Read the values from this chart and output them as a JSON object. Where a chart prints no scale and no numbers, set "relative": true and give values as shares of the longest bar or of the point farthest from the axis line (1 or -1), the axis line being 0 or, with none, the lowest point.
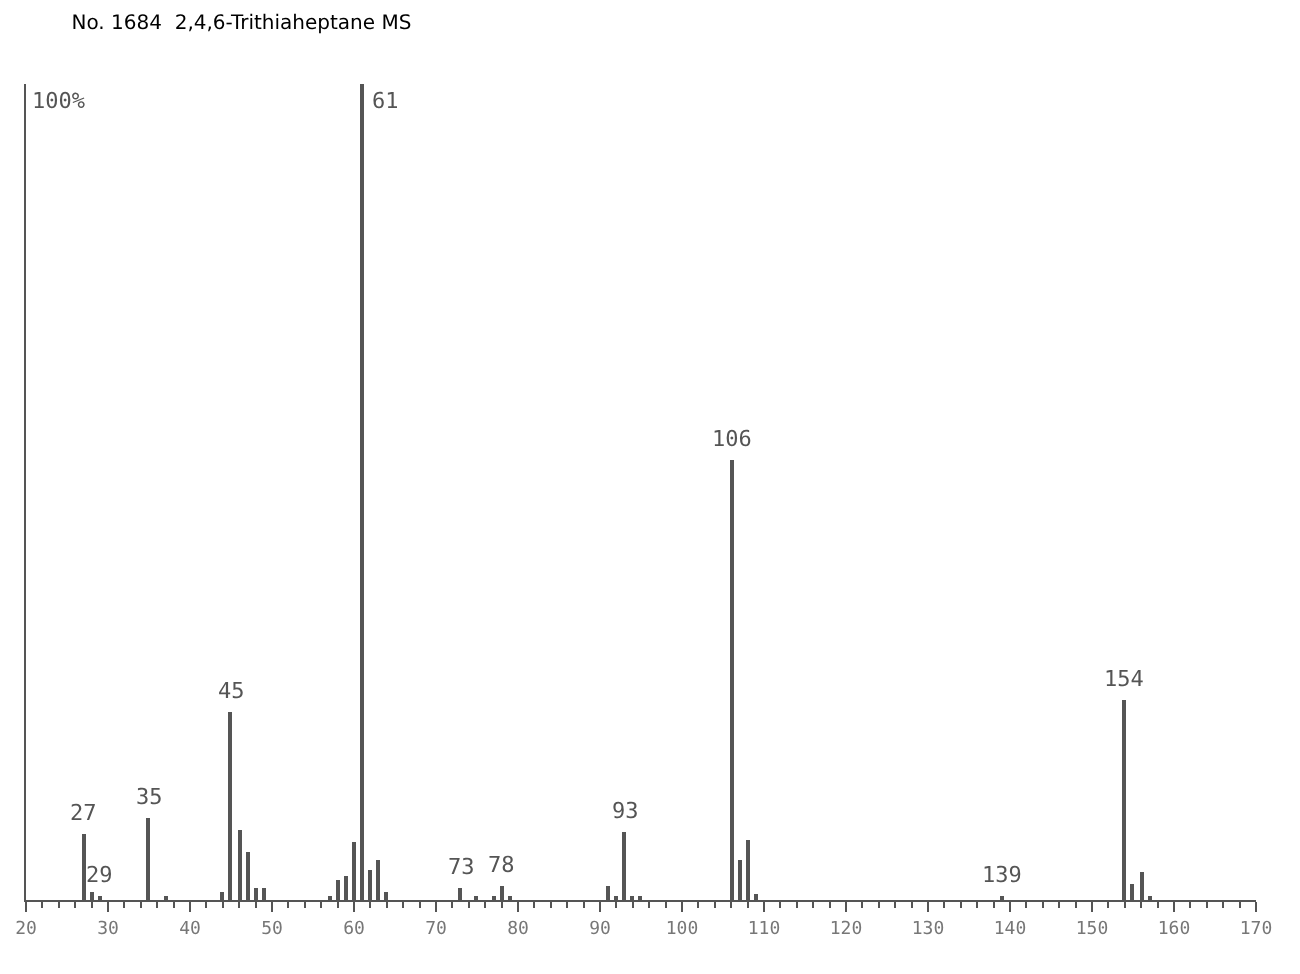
{
  "chart_data": {
    "type": "bar",
    "title": "No. 1684  2,4,6-Trithiaheptane MS",
    "relative": true,
    "x": [
      27,
      28,
      29,
      35,
      37,
      44,
      45,
      46,
      47,
      48,
      49,
      57,
      58,
      59,
      60,
      61,
      62,
      63,
      64,
      73,
      75,
      77,
      78,
      79,
      91,
      92,
      93,
      94,
      95,
      106,
      107,
      108,
      109,
      139,
      154,
      155,
      156,
      157
    ],
    "values": [
      0.08,
      0.01,
      0.005,
      0.1,
      0.005,
      0.01,
      0.23,
      0.085,
      0.06,
      0.015,
      0.015,
      0.005,
      0.024,
      0.03,
      0.072,
      1,
      0.038,
      0.048,
      0.01,
      0.015,
      0.005,
      0.006,
      0.017,
      0.005,
      0.018,
      0.006,
      0.083,
      0.005,
      0.005,
      0.54,
      0.05,
      0.073,
      0.008,
      0.005,
      0.245,
      0.02,
      0.034,
      0.004
    ],
    "color": "#555555",
    "xlim": [
      20,
      170
    ],
    "xticks": [
      20,
      30,
      40,
      50,
      60,
      70,
      80,
      90,
      100,
      110,
      120,
      130,
      140,
      150,
      160,
      170
    ],
    "annotations": [
      "100%",
      {
        "text": "27",
        "x": 27,
        "y": 0.08
      },
      {
        "text": "29",
        "x": 29,
        "y": 0.005
      },
      {
        "text": "35",
        "x": 35,
        "y": 0.1
      },
      {
        "text": "45",
        "x": 45,
        "y": 0.23
      },
      {
        "text": "61",
        "x": 61,
        "y": 1
      },
      {
        "text": "73",
        "x": 73,
        "y": 0.015
      },
      {
        "text": "78",
        "x": 78,
        "y": 0.017
      },
      {
        "text": "93",
        "x": 93,
        "y": 0.083
      },
      {
        "text": "106",
        "x": 106,
        "y": 0.54
      },
      {
        "text": "139",
        "x": 139,
        "y": 0.005
      },
      {
        "text": "154",
        "x": 154,
        "y": 0.245
      }
    ]
  }
}
